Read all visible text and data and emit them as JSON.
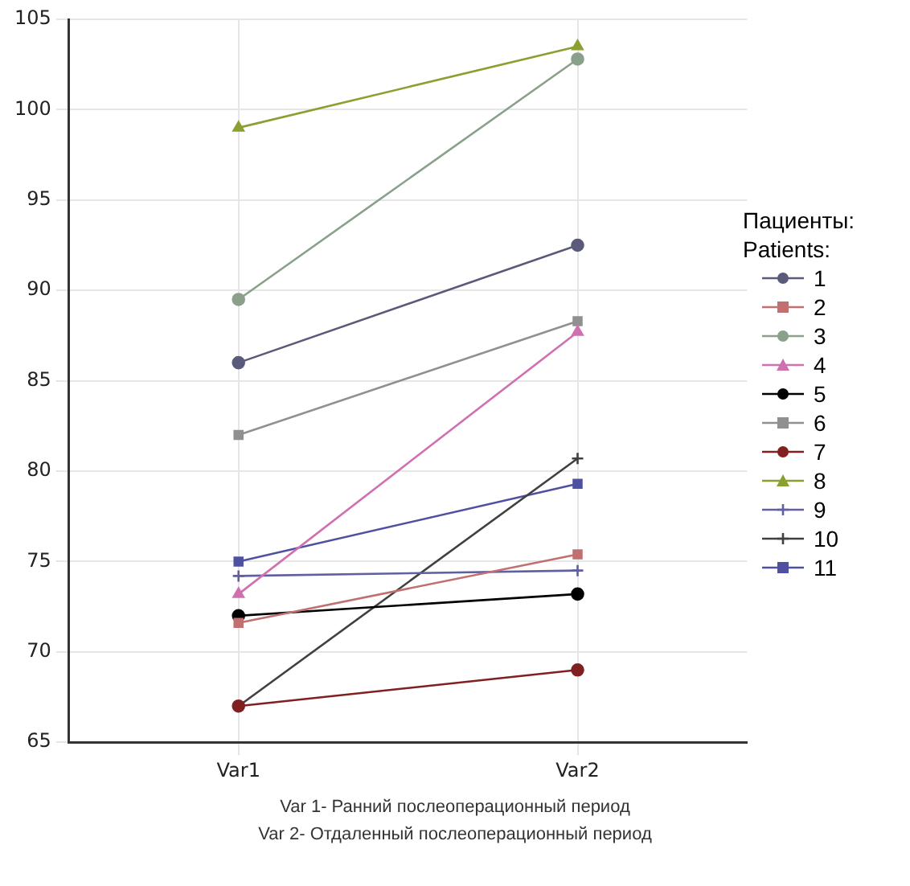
{
  "chart_data": {
    "type": "line",
    "categories": [
      "Var1",
      "Var2"
    ],
    "legend_title": "Пациенты:\nPatients:",
    "legend": "right",
    "grid": true,
    "ylim": [
      65,
      105
    ],
    "yticks": [
      65,
      70,
      75,
      80,
      85,
      90,
      95,
      100,
      105
    ],
    "series": [
      {
        "name": "1",
        "color": "#5a5a7a",
        "marker": "circle",
        "values": [
          86,
          92.5
        ]
      },
      {
        "name": "2",
        "color": "#c07070",
        "marker": "square",
        "values": [
          71.6,
          75.4
        ]
      },
      {
        "name": "3",
        "color": "#8aa08a",
        "marker": "circle",
        "values": [
          89.5,
          102.8
        ]
      },
      {
        "name": "4",
        "color": "#d070b0",
        "marker": "triangle",
        "values": [
          73.2,
          87.7
        ]
      },
      {
        "name": "5",
        "color": "#000000",
        "marker": "circle",
        "values": [
          72,
          73.2
        ]
      },
      {
        "name": "6",
        "color": "#909090",
        "marker": "square",
        "values": [
          82,
          88.3
        ]
      },
      {
        "name": "7",
        "color": "#802020",
        "marker": "circle",
        "values": [
          67,
          69
        ]
      },
      {
        "name": "8",
        "color": "#8aa030",
        "marker": "triangle",
        "values": [
          99,
          103.5
        ]
      },
      {
        "name": "9",
        "color": "#6060a0",
        "marker": "cross",
        "values": [
          74.2,
          74.5
        ]
      },
      {
        "name": "10",
        "color": "#404040",
        "marker": "cross",
        "values": [
          67,
          80.7
        ]
      },
      {
        "name": "11",
        "color": "#5050a0",
        "marker": "square",
        "values": [
          75,
          79.3
        ]
      }
    ],
    "annotations": [
      "Var 1- Ранний послеоперационный период",
      "Var 2- Отдаленный послеоперационный период"
    ]
  }
}
